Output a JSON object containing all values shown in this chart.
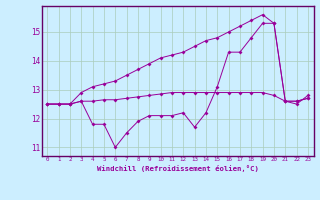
{
  "xlabel": "Windchill (Refroidissement éolien,°C)",
  "background_color": "#cceeff",
  "grid_color": "#aaccbb",
  "line_color": "#990099",
  "border_color": "#660066",
  "x": [
    0,
    1,
    2,
    3,
    4,
    5,
    6,
    7,
    8,
    9,
    10,
    11,
    12,
    13,
    14,
    15,
    16,
    17,
    18,
    19,
    20,
    21,
    22,
    23
  ],
  "line1": [
    12.5,
    12.5,
    12.5,
    12.6,
    11.8,
    11.8,
    11.0,
    11.5,
    11.9,
    12.1,
    12.1,
    12.1,
    12.2,
    11.7,
    12.2,
    13.1,
    14.3,
    14.3,
    14.8,
    15.3,
    15.3,
    12.6,
    12.5,
    12.8
  ],
  "line2": [
    12.5,
    12.5,
    12.5,
    12.9,
    13.1,
    13.2,
    13.3,
    13.5,
    13.7,
    13.9,
    14.1,
    14.2,
    14.3,
    14.5,
    14.7,
    14.8,
    15.0,
    15.2,
    15.4,
    15.6,
    15.3,
    12.6,
    12.6,
    12.7
  ],
  "line3": [
    12.5,
    12.5,
    12.5,
    12.6,
    12.6,
    12.65,
    12.65,
    12.7,
    12.75,
    12.8,
    12.85,
    12.9,
    12.9,
    12.9,
    12.9,
    12.9,
    12.9,
    12.9,
    12.9,
    12.9,
    12.8,
    12.6,
    12.6,
    12.7
  ],
  "ylim": [
    10.7,
    15.9
  ],
  "xlim": [
    -0.5,
    23.5
  ],
  "yticks": [
    11,
    12,
    13,
    14,
    15
  ],
  "xticks": [
    0,
    1,
    2,
    3,
    4,
    5,
    6,
    7,
    8,
    9,
    10,
    11,
    12,
    13,
    14,
    15,
    16,
    17,
    18,
    19,
    20,
    21,
    22,
    23
  ]
}
